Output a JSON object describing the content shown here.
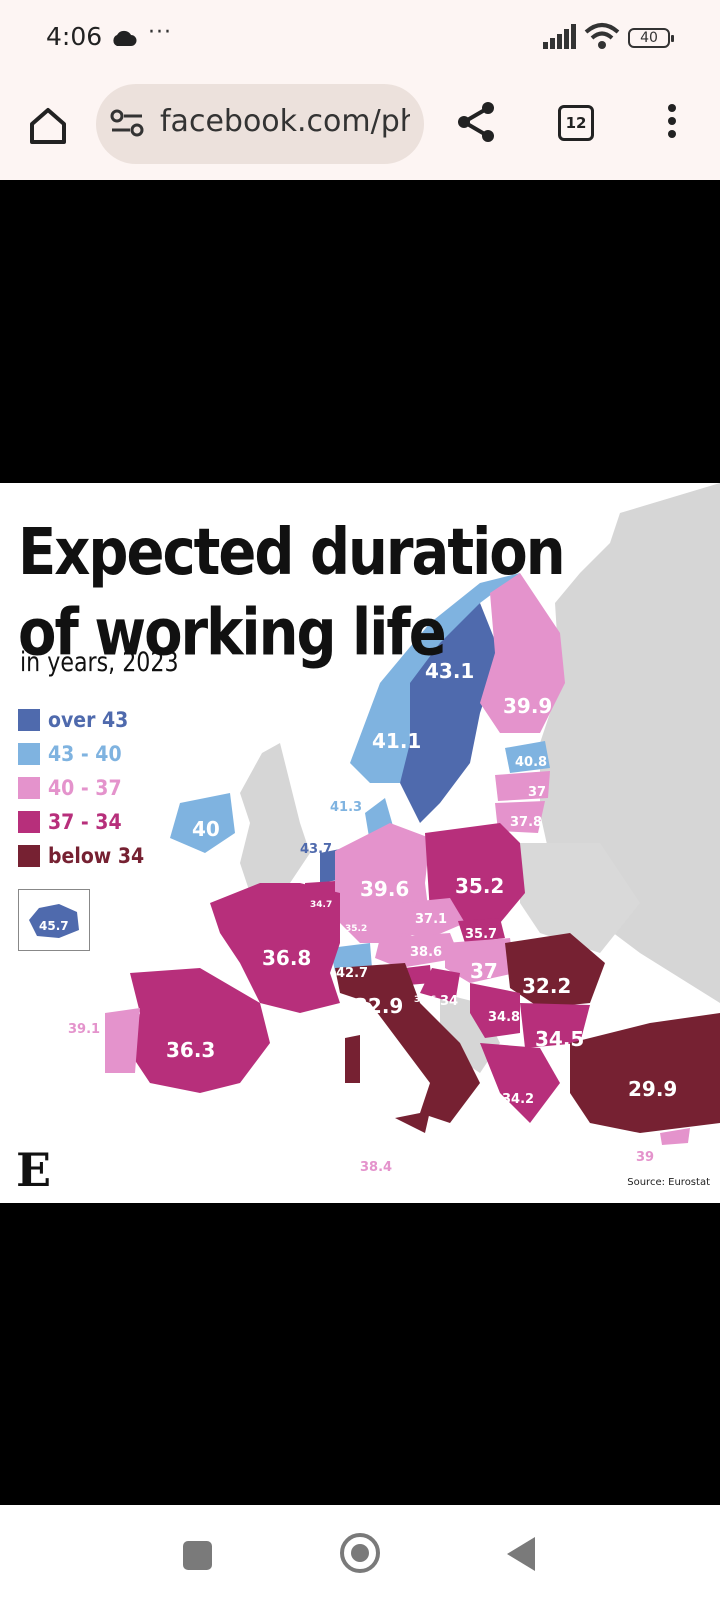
{
  "status": {
    "time": "4:06",
    "more": "···",
    "battery": "40"
  },
  "browser": {
    "url": "facebook.com/ph",
    "tab_count": "12"
  },
  "map": {
    "title_line1": "Expected duration",
    "title_line2": "of working life",
    "subtitle": "in years, 2023",
    "legend": [
      {
        "label": "over 43",
        "color": "#4f6aad"
      },
      {
        "label": "43 - 40",
        "color": "#7fb3e0"
      },
      {
        "label": "40 - 37",
        "color": "#e493cc"
      },
      {
        "label": "37 - 34",
        "color": "#b72f7b"
      },
      {
        "label": "below 34",
        "color": "#762132"
      }
    ],
    "source": "Source: Eurostat",
    "logo": "E",
    "values": {
      "iceland": "45.7",
      "norway": "41.1",
      "sweden": "43.1",
      "finland": "39.9",
      "estonia": "40.8",
      "latvia": "37",
      "lithuania": "37.8",
      "denmark": "41.3",
      "ireland": "40",
      "netherlands": "43.7",
      "belgium": "34.7",
      "luxembourg": "35.2",
      "germany": "39.6",
      "poland": "35.2",
      "czechia": "37.1",
      "slovakia": "35.7",
      "austria": "38.6",
      "hungary": "37",
      "switzerland": "42.7",
      "slovenia": "36.6",
      "croatia": "34",
      "romania": "32.2",
      "serbia": "34.8",
      "bulgaria": "34.5",
      "greece": "34.2",
      "turkey": "29.9",
      "cyprus": "39",
      "malta": "38.4",
      "italy": "32.9",
      "france": "36.8",
      "spain": "36.3",
      "portugal": "39.1"
    }
  }
}
